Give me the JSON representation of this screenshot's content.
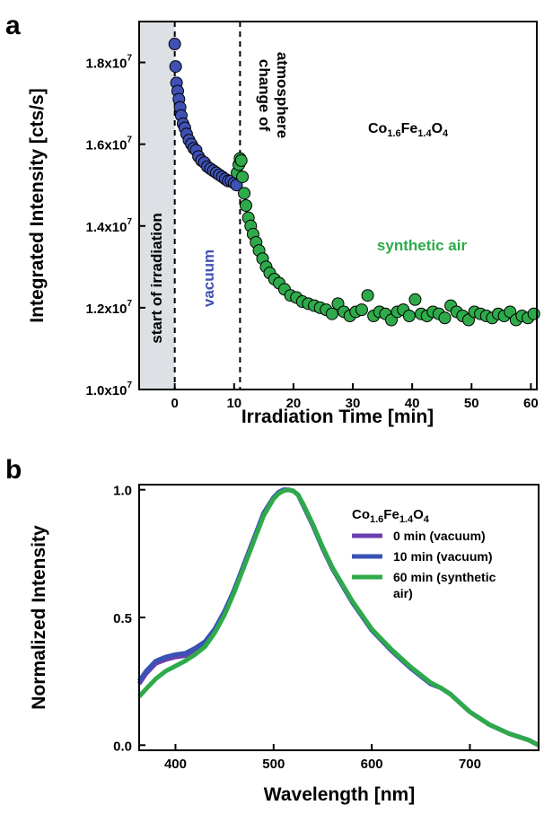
{
  "figure": {
    "panel_a_label": "a",
    "panel_b_label": "b"
  },
  "chart_data": [
    {
      "type": "scatter",
      "panel": "a",
      "title": "",
      "xlabel": "Irradiation Time [min]",
      "ylabel": "Integrated Intensity [cts/s]",
      "xlim": [
        -6,
        61
      ],
      "ylim": [
        10000000,
        19000000
      ],
      "x_ticks": [
        0,
        10,
        20,
        30,
        40,
        50,
        60
      ],
      "x_tick_labels": [
        "0",
        "10",
        "20",
        "30",
        "40",
        "50",
        "60"
      ],
      "y_ticks": [
        10000000,
        12000000,
        14000000,
        16000000,
        18000000
      ],
      "y_tick_mantissa": [
        "1.0x10",
        "1.2x10",
        "1.4x10",
        "1.6x10",
        "1.8x10"
      ],
      "y_tick_exponent": "7",
      "grid": false,
      "shaded_region": {
        "x_from": -6,
        "x_to": 0,
        "color": "#dde1e5"
      },
      "vlines": [
        0,
        11
      ],
      "compound": {
        "base1": "Co",
        "sub1": "1.6",
        "base2": "Fe",
        "sub2": "1.4",
        "base3": "O",
        "sub3": "4"
      },
      "annotations": {
        "start": "start of irradiation",
        "change": "change of",
        "atmosphere": "atmosphere",
        "vacuum": "vacuum",
        "synthetic_air": "synthetic air"
      },
      "series": [
        {
          "name": "vacuum",
          "color": "#3f51b5",
          "x": [
            0.0,
            0.15,
            0.3,
            0.5,
            0.7,
            0.9,
            1.1,
            1.4,
            1.7,
            2.0,
            2.4,
            2.8,
            3.2,
            3.6,
            4.0,
            4.5,
            5.0,
            5.5,
            6.0,
            6.5,
            7.0,
            7.5,
            8.0,
            8.5,
            9.0,
            9.5,
            10.0,
            10.4
          ],
          "y": [
            18450000,
            17900000,
            17500000,
            17300000,
            17100000,
            16900000,
            16700000,
            16500000,
            16400000,
            16250000,
            16100000,
            16000000,
            15900000,
            15850000,
            15700000,
            15600000,
            15550000,
            15450000,
            15400000,
            15350000,
            15300000,
            15250000,
            15200000,
            15150000,
            15100000,
            15100000,
            15050000,
            15000000
          ]
        },
        {
          "name": "synthetic air",
          "color": "#2eaa4a",
          "x": [
            10.5,
            10.8,
            11.0,
            11.2,
            11.4,
            11.7,
            12.0,
            12.4,
            12.8,
            13.2,
            13.7,
            14.2,
            14.8,
            15.4,
            16.0,
            16.8,
            17.6,
            18.5,
            19.5,
            20.5,
            21.5,
            22.5,
            23.5,
            24.5,
            25.5,
            26.5,
            27.5,
            28.5,
            29.5,
            30.5,
            31.5,
            32.5,
            33.5,
            34.5,
            35.5,
            36.5,
            37.5,
            38.5,
            39.5,
            40.5,
            41.5,
            42.5,
            43.5,
            44.5,
            45.5,
            46.5,
            47.5,
            48.5,
            49.5,
            50.5,
            51.5,
            52.5,
            53.5,
            54.5,
            55.5,
            56.5,
            57.5,
            58.5,
            59.5,
            60.5
          ],
          "y": [
            15300000,
            15500000,
            15650000,
            15600000,
            15200000,
            14800000,
            14500000,
            14200000,
            14000000,
            13800000,
            13600000,
            13400000,
            13200000,
            13000000,
            12850000,
            12700000,
            12600000,
            12450000,
            12300000,
            12250000,
            12150000,
            12100000,
            12050000,
            12000000,
            11950000,
            11850000,
            12100000,
            11900000,
            11800000,
            11900000,
            11950000,
            12300000,
            11800000,
            11900000,
            11850000,
            11700000,
            11900000,
            11950000,
            11800000,
            12200000,
            11850000,
            11800000,
            11900000,
            11850000,
            11750000,
            12050000,
            11900000,
            11800000,
            11700000,
            11900000,
            11850000,
            11800000,
            11750000,
            11850000,
            11800000,
            11900000,
            11700000,
            11800000,
            11750000,
            11850000
          ]
        }
      ]
    },
    {
      "type": "line",
      "panel": "b",
      "title": "",
      "xlabel": "Wavelength [nm]",
      "ylabel": "Normalized Intensity",
      "xlim": [
        363,
        770
      ],
      "ylim": [
        -0.02,
        1.02
      ],
      "x_ticks": [
        400,
        500,
        600,
        700
      ],
      "x_tick_labels": [
        "400",
        "500",
        "600",
        "700"
      ],
      "y_ticks": [
        0.0,
        0.5,
        1.0
      ],
      "y_tick_labels": [
        "0.0",
        "0.5",
        "1.0"
      ],
      "grid": false,
      "legend_placement": "top-right",
      "legend_title": {
        "base1": "Co",
        "sub1": "1.6",
        "base2": "Fe",
        "sub2": "1.4",
        "base3": "O",
        "sub3": "4"
      },
      "series": [
        {
          "name": "0 min (vacuum)",
          "color": "#6a3fb0",
          "x": [
            363,
            370,
            380,
            390,
            400,
            410,
            420,
            430,
            440,
            450,
            460,
            470,
            480,
            490,
            500,
            505,
            510,
            515,
            520,
            525,
            530,
            540,
            550,
            560,
            580,
            600,
            620,
            640,
            660,
            670,
            680,
            700,
            720,
            740,
            760,
            770
          ],
          "y": [
            0.24,
            0.28,
            0.32,
            0.335,
            0.345,
            0.35,
            0.37,
            0.4,
            0.45,
            0.52,
            0.61,
            0.71,
            0.81,
            0.91,
            0.97,
            0.99,
            1.0,
            1.0,
            0.995,
            0.98,
            0.94,
            0.86,
            0.77,
            0.69,
            0.56,
            0.45,
            0.37,
            0.3,
            0.24,
            0.225,
            0.2,
            0.13,
            0.08,
            0.045,
            0.02,
            0.0
          ]
        },
        {
          "name": "10 min (vacuum)",
          "color": "#3a52b4",
          "x": [
            363,
            370,
            380,
            390,
            400,
            410,
            420,
            430,
            440,
            450,
            460,
            470,
            480,
            490,
            500,
            505,
            510,
            515,
            520,
            525,
            530,
            540,
            550,
            560,
            580,
            600,
            620,
            640,
            660,
            670,
            680,
            700,
            720,
            740,
            760,
            770
          ],
          "y": [
            0.25,
            0.29,
            0.33,
            0.345,
            0.355,
            0.36,
            0.38,
            0.405,
            0.455,
            0.525,
            0.61,
            0.71,
            0.81,
            0.91,
            0.97,
            0.99,
            1.0,
            1.0,
            0.995,
            0.98,
            0.94,
            0.86,
            0.77,
            0.69,
            0.56,
            0.45,
            0.37,
            0.3,
            0.24,
            0.225,
            0.2,
            0.13,
            0.08,
            0.045,
            0.02,
            0.0
          ]
        },
        {
          "name": "60 min (synthetic air)",
          "color": "#2eaa4a",
          "x": [
            363,
            370,
            380,
            390,
            400,
            410,
            420,
            430,
            440,
            450,
            460,
            470,
            480,
            490,
            500,
            505,
            510,
            515,
            520,
            525,
            530,
            540,
            550,
            560,
            580,
            600,
            620,
            640,
            660,
            670,
            680,
            700,
            720,
            740,
            760,
            770
          ],
          "y": [
            0.19,
            0.22,
            0.26,
            0.29,
            0.31,
            0.33,
            0.355,
            0.385,
            0.44,
            0.51,
            0.6,
            0.7,
            0.8,
            0.9,
            0.965,
            0.985,
            0.995,
            1.0,
            0.995,
            0.98,
            0.945,
            0.865,
            0.775,
            0.695,
            0.565,
            0.455,
            0.375,
            0.305,
            0.245,
            0.225,
            0.2,
            0.13,
            0.08,
            0.045,
            0.02,
            0.0
          ]
        }
      ]
    }
  ]
}
